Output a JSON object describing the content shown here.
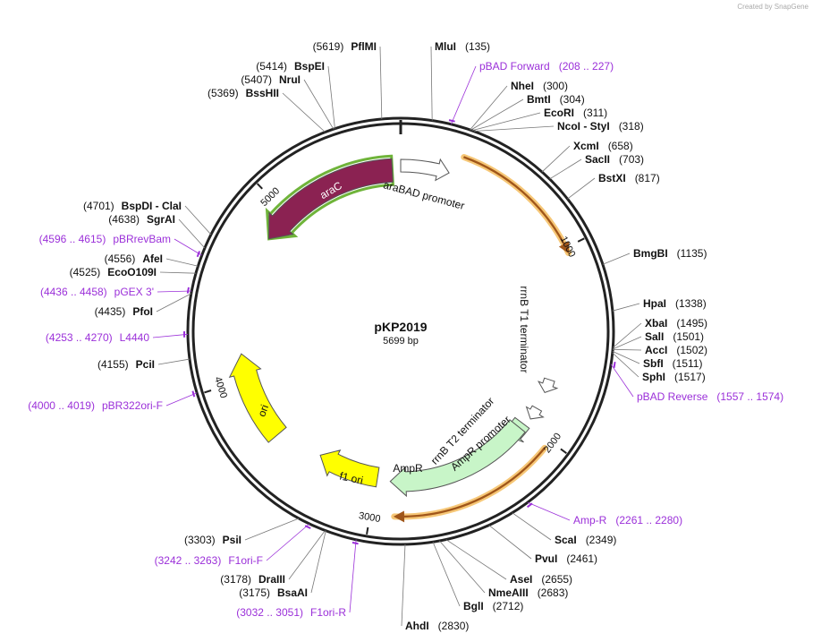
{
  "credit": "Created by SnapGene",
  "map": {
    "name": "pKP2019",
    "length": "5699 bp",
    "ring_ticks": [
      1000,
      2000,
      3000,
      4000,
      5000
    ],
    "features": [
      {
        "label": "araC"
      },
      {
        "label": "araBAD promoter"
      },
      {
        "label": "rrnB T1 terminator"
      },
      {
        "label": "rrnB T2 terminator"
      },
      {
        "label": "AmpR promoter"
      },
      {
        "label": "AmpR"
      },
      {
        "label": "f1 ori"
      },
      {
        "label": "ori"
      }
    ],
    "enzymes": [
      {
        "name": "MluI",
        "position": "(135)"
      },
      {
        "name": "NheI",
        "position": "(300)"
      },
      {
        "name": "BmtI",
        "position": "(304)"
      },
      {
        "name": "EcoRI",
        "position": "(311)"
      },
      {
        "name": "NcoI - StyI",
        "position": "(318)"
      },
      {
        "name": "XcmI",
        "position": "(658)"
      },
      {
        "name": "SacII",
        "position": "(703)"
      },
      {
        "name": "BstXI",
        "position": "(817)"
      },
      {
        "name": "BmgBI",
        "position": "(1135)"
      },
      {
        "name": "HpaI",
        "position": "(1338)"
      },
      {
        "name": "XbaI",
        "position": "(1495)"
      },
      {
        "name": "SalI",
        "position": "(1501)"
      },
      {
        "name": "AccI",
        "position": "(1502)"
      },
      {
        "name": "SbfI",
        "position": "(1511)"
      },
      {
        "name": "SphI",
        "position": "(1517)"
      },
      {
        "name": "ScaI",
        "position": "(2349)"
      },
      {
        "name": "PvuI",
        "position": "(2461)"
      },
      {
        "name": "AseI",
        "position": "(2655)"
      },
      {
        "name": "NmeAIII",
        "position": "(2683)"
      },
      {
        "name": "BglI",
        "position": "(2712)"
      },
      {
        "name": "AhdI",
        "position": "(2830)"
      },
      {
        "name": "PsiI",
        "position": "(3303)"
      },
      {
        "name": "DraIII",
        "position": "(3178)"
      },
      {
        "name": "BsaAI",
        "position": "(3175)"
      },
      {
        "name": "PciI",
        "position": "(4155)"
      },
      {
        "name": "PfoI",
        "position": "(4435)"
      },
      {
        "name": "EcoO109I",
        "position": "(4525)"
      },
      {
        "name": "AfeI",
        "position": "(4556)"
      },
      {
        "name": "SgrAI",
        "position": "(4638)"
      },
      {
        "name": "BspDI - ClaI",
        "position": "(4701)"
      },
      {
        "name": "BssHII",
        "position": "(5369)"
      },
      {
        "name": "NruI",
        "position": "(5407)"
      },
      {
        "name": "BspEI",
        "position": "(5414)"
      },
      {
        "name": "PflMI",
        "position": "(5619)"
      }
    ],
    "primers": [
      {
        "name": "pBAD Forward",
        "range": "(208 .. 227)"
      },
      {
        "name": "pBAD Reverse",
        "range": "(1557 .. 1574)"
      },
      {
        "name": "Amp-R",
        "range": "(2261 .. 2280)"
      },
      {
        "name": "F1ori-F",
        "range": "(3242 .. 3263)"
      },
      {
        "name": "F1ori-R",
        "range": "(3032 .. 3051)"
      },
      {
        "name": "pBR322ori-F",
        "range": "(4000 .. 4019)"
      },
      {
        "name": "L4440",
        "range": "(4253 .. 4270)"
      },
      {
        "name": "pGEX 3'",
        "range": "(4436 .. 4458)"
      },
      {
        "name": "pBRrevBam",
        "range": "(4596 .. 4615)"
      }
    ]
  }
}
